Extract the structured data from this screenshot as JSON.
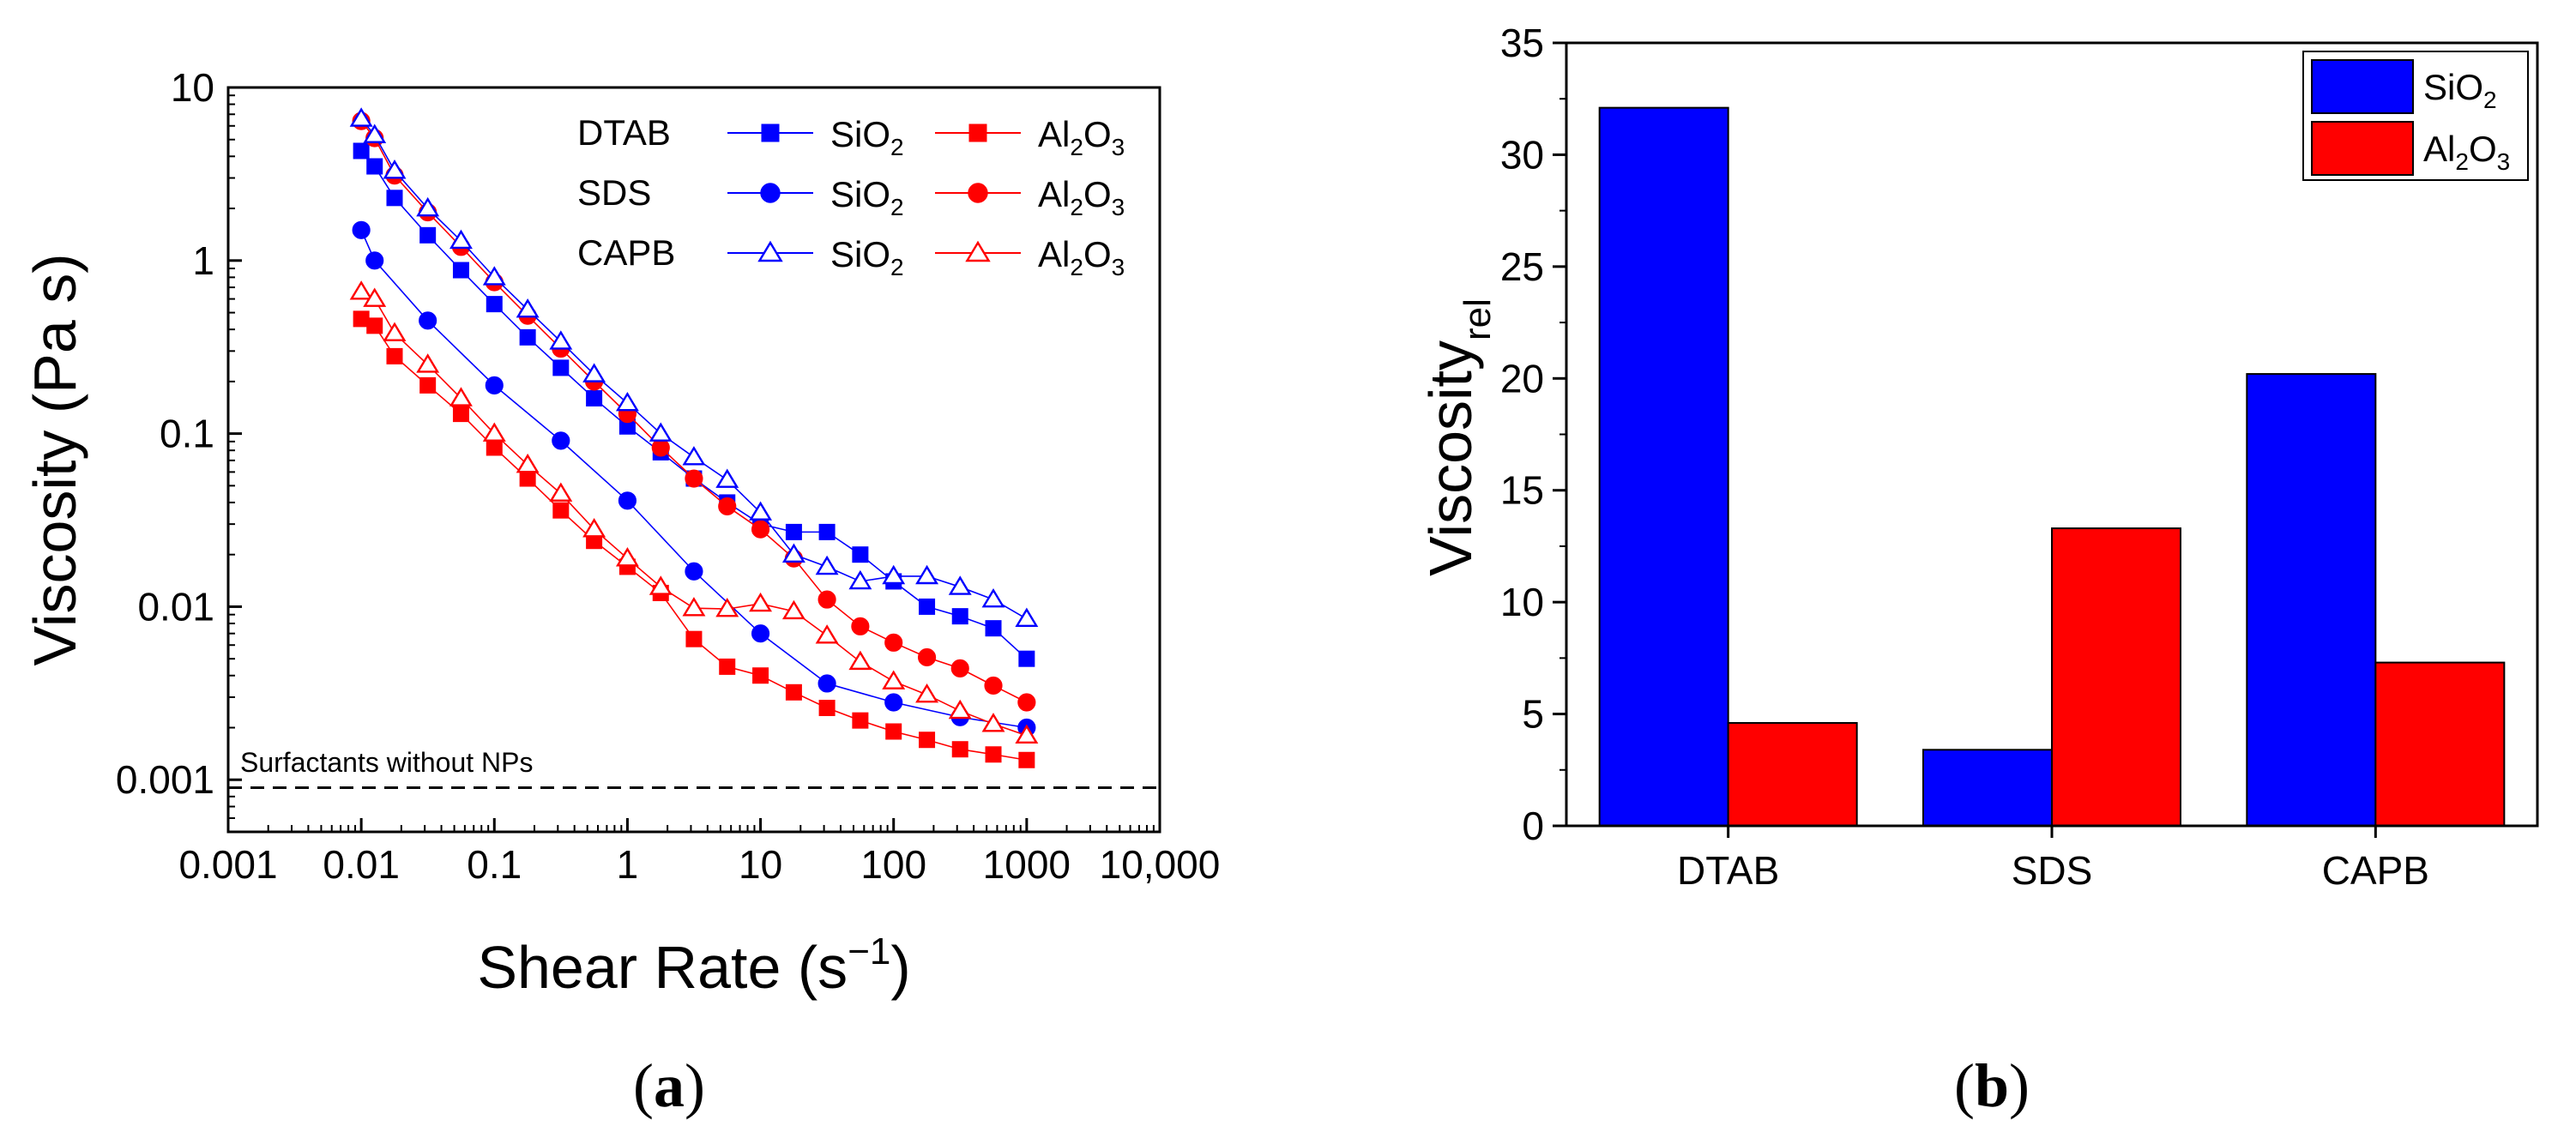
{
  "chart_data": [
    {
      "type": "line",
      "panel_label": "a",
      "xlabel": "Shear Rate (s",
      "xlabel_sup": "−1",
      "xlabel_end": ")",
      "ylabel": "Viscosity (Pa s)",
      "xscale": "log",
      "yscale": "log",
      "xlim": [
        0.001,
        10000
      ],
      "ylim": [
        0.0005,
        10
      ],
      "x_ticks": [
        {
          "v": 0.001,
          "label": "0.001"
        },
        {
          "v": 0.01,
          "label": "0.01"
        },
        {
          "v": 0.1,
          "label": "0.1"
        },
        {
          "v": 1,
          "label": "1"
        },
        {
          "v": 10,
          "label": "10"
        },
        {
          "v": 100,
          "label": "100"
        },
        {
          "v": 1000,
          "label": "1000"
        },
        {
          "v": 10000,
          "label": "10,000"
        }
      ],
      "y_ticks": [
        {
          "v": 0.001,
          "label": "0.001"
        },
        {
          "v": 0.01,
          "label": "0.01"
        },
        {
          "v": 0.1,
          "label": "0.1"
        },
        {
          "v": 1,
          "label": "1"
        },
        {
          "v": 10,
          "label": "10"
        }
      ],
      "reference_line": {
        "y": 0.0009,
        "label": "Surfactants without NPs",
        "style": "dashed"
      },
      "x": [
        0.01,
        0.0126,
        0.0178,
        0.0316,
        0.0562,
        0.1,
        0.178,
        0.316,
        0.562,
        1,
        1.78,
        3.16,
        5.62,
        10,
        17.8,
        31.6,
        56.2,
        100,
        178,
        316,
        562,
        1000
      ],
      "legend_rows": [
        "DTAB",
        "SDS",
        "CAPB"
      ],
      "series": [
        {
          "name": "DTAB SiO2",
          "row": 0,
          "col": 0,
          "label": "SiO",
          "sub": "2",
          "color": "#0000ff",
          "marker": "square",
          "filled": true,
          "values": [
            4.3,
            3.5,
            2.3,
            1.4,
            0.88,
            0.56,
            0.36,
            0.24,
            0.16,
            0.11,
            0.078,
            0.055,
            0.04,
            0.03,
            0.027,
            0.027,
            0.02,
            0.014,
            0.01,
            0.0088,
            0.0075,
            0.005
          ]
        },
        {
          "name": "DTAB Al2O3",
          "row": 0,
          "col": 1,
          "label": "Al",
          "sub": "2",
          "tail": "O",
          "sub2": "3",
          "color": "#ff0000",
          "marker": "square",
          "filled": true,
          "values": [
            0.46,
            0.42,
            0.28,
            0.19,
            0.13,
            0.083,
            0.055,
            0.036,
            0.024,
            0.017,
            0.012,
            0.0065,
            0.0045,
            0.004,
            0.0032,
            0.0026,
            0.0022,
            0.0019,
            0.0017,
            0.0015,
            0.0014,
            0.0013
          ]
        },
        {
          "name": "SDS SiO2",
          "row": 1,
          "col": 0,
          "label": "SiO",
          "sub": "2",
          "color": "#0000ff",
          "marker": "circle",
          "filled": true,
          "values": [
            1.5,
            1.0,
            null,
            0.45,
            null,
            0.19,
            null,
            0.091,
            null,
            0.041,
            null,
            0.016,
            null,
            0.007,
            null,
            0.0036,
            null,
            0.0028,
            null,
            0.0023,
            null,
            0.002
          ]
        },
        {
          "name": "SDS Al2O3",
          "row": 1,
          "col": 1,
          "label": "Al",
          "sub": "2",
          "tail": "O",
          "sub2": "3",
          "color": "#ff0000",
          "marker": "circle",
          "filled": true,
          "values": [
            6.4,
            5.1,
            3.1,
            1.9,
            1.2,
            0.75,
            0.48,
            0.31,
            0.2,
            0.13,
            0.083,
            0.055,
            0.038,
            0.028,
            0.019,
            0.011,
            0.0077,
            0.0062,
            0.0051,
            0.0044,
            0.0035,
            0.0028
          ]
        },
        {
          "name": "CAPB SiO2",
          "row": 2,
          "col": 0,
          "label": "SiO",
          "sub": "2",
          "color": "#0000ff",
          "marker": "triangle",
          "filled": false,
          "values": [
            6.6,
            5.3,
            3.3,
            2.0,
            1.3,
            0.8,
            0.52,
            0.34,
            0.22,
            0.15,
            0.1,
            0.073,
            0.054,
            0.035,
            0.02,
            0.017,
            0.014,
            0.015,
            0.015,
            0.013,
            0.011,
            0.0085
          ]
        },
        {
          "name": "CAPB Al2O3",
          "row": 2,
          "col": 1,
          "label": "Al",
          "sub": "2",
          "tail": "O",
          "sub2": "3",
          "color": "#ff0000",
          "marker": "triangle",
          "filled": false,
          "values": [
            0.66,
            0.6,
            0.38,
            0.25,
            0.16,
            0.1,
            0.066,
            0.045,
            0.028,
            0.019,
            0.013,
            0.0098,
            0.0097,
            0.0104,
            0.0094,
            0.0068,
            0.0048,
            0.0037,
            0.0031,
            0.0025,
            0.0021,
            0.0018
          ]
        }
      ]
    },
    {
      "type": "bar",
      "panel_label": "b",
      "ylabel": "Viscosity",
      "ylabel_sub": "rel",
      "categories": [
        "DTAB",
        "SDS",
        "CAPB"
      ],
      "ylim": [
        0,
        35
      ],
      "y_ticks": [
        0,
        5,
        10,
        15,
        20,
        25,
        30,
        35
      ],
      "legend_position": "top-right",
      "series": [
        {
          "name": "SiO2",
          "label": "SiO",
          "sub": "2",
          "color": "#0000ff",
          "values": [
            32.1,
            3.4,
            20.2
          ]
        },
        {
          "name": "Al2O3",
          "label": "Al",
          "sub": "2",
          "tail": "O",
          "sub2": "3",
          "color": "#ff0000",
          "values": [
            4.6,
            13.3,
            7.3
          ]
        }
      ]
    }
  ]
}
